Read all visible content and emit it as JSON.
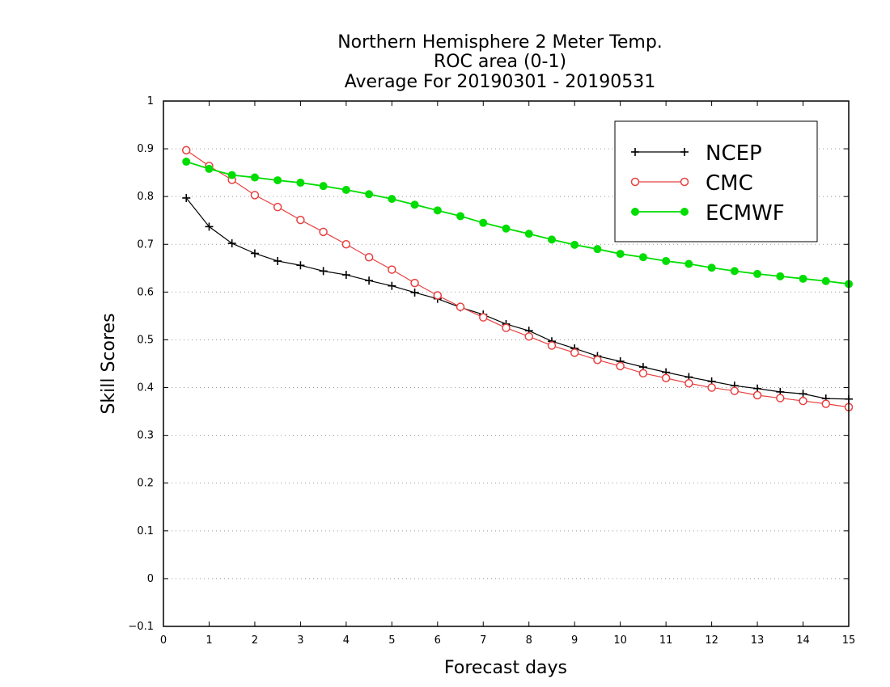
{
  "chart_data": {
    "type": "line",
    "title_lines": [
      "Northern Hemisphere 2 Meter Temp.",
      "ROC area (0-1)",
      "Average For 20190301 - 20190531"
    ],
    "xlabel": "Forecast days",
    "ylabel": "Skill Scores",
    "xlim": [
      0,
      15
    ],
    "ylim": [
      -0.1,
      1
    ],
    "x_ticks": [
      "0",
      "1",
      "2",
      "3",
      "4",
      "5",
      "6",
      "7",
      "8",
      "9",
      "10",
      "11",
      "12",
      "13",
      "14",
      "15"
    ],
    "y_ticks": [
      "−0.1",
      "0",
      "0.1",
      "0.2",
      "0.3",
      "0.4",
      "0.5",
      "0.6",
      "0.7",
      "0.8",
      "0.9",
      "1"
    ],
    "grid": "horizontal dotted",
    "legend_position": "top-right",
    "x": [
      0.5,
      1,
      1.5,
      2,
      2.5,
      3,
      3.5,
      4,
      4.5,
      5,
      5.5,
      6,
      6.5,
      7,
      7.5,
      8,
      8.5,
      9,
      9.5,
      10,
      10.5,
      11,
      11.5,
      12,
      12.5,
      13,
      13.5,
      14,
      14.5,
      15
    ],
    "series": [
      {
        "name": "NCEP",
        "color": "#000000",
        "marker": "plus",
        "values": [
          0.797,
          0.737,
          0.702,
          0.681,
          0.665,
          0.656,
          0.644,
          0.636,
          0.624,
          0.613,
          0.599,
          0.586,
          0.568,
          0.553,
          0.533,
          0.519,
          0.497,
          0.482,
          0.466,
          0.455,
          0.443,
          0.432,
          0.422,
          0.413,
          0.404,
          0.398,
          0.391,
          0.387,
          0.377,
          0.376
        ]
      },
      {
        "name": "CMC",
        "color": "#e84040",
        "marker": "open-circle",
        "values": [
          0.897,
          0.864,
          0.835,
          0.803,
          0.778,
          0.751,
          0.726,
          0.7,
          0.673,
          0.647,
          0.619,
          0.593,
          0.569,
          0.547,
          0.525,
          0.507,
          0.488,
          0.473,
          0.458,
          0.445,
          0.43,
          0.42,
          0.409,
          0.4,
          0.393,
          0.384,
          0.378,
          0.372,
          0.366,
          0.359
        ]
      },
      {
        "name": "ECMWF",
        "color": "#00dd00",
        "marker": "filled-circle",
        "values": [
          0.873,
          0.858,
          0.845,
          0.84,
          0.834,
          0.829,
          0.822,
          0.814,
          0.805,
          0.795,
          0.783,
          0.771,
          0.759,
          0.745,
          0.733,
          0.722,
          0.71,
          0.699,
          0.69,
          0.68,
          0.673,
          0.665,
          0.659,
          0.651,
          0.644,
          0.638,
          0.633,
          0.628,
          0.623,
          0.617
        ]
      }
    ]
  }
}
